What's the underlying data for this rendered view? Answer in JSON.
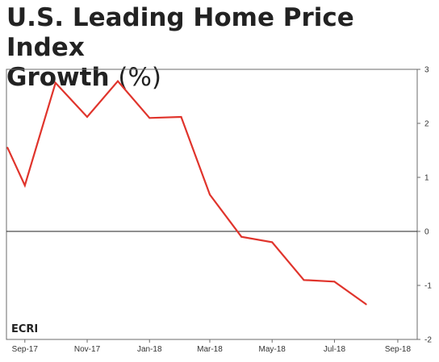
{
  "chart_data": {
    "type": "line",
    "title": "U.S. Leading Home Price Index",
    "title_line2": "Growth",
    "title_unit": "(%)",
    "x_start": "2017-08-14",
    "x_end": "2018-09-20",
    "x_tick_labels": [
      {
        "date": "2017-09-01",
        "label": "Sep-17"
      },
      {
        "date": "2017-11-01",
        "label": "Nov-17"
      },
      {
        "date": "2018-01-01",
        "label": "Jan-18"
      },
      {
        "date": "2018-03-01",
        "label": "Mar-18"
      },
      {
        "date": "2018-05-01",
        "label": "May-18"
      },
      {
        "date": "2018-07-01",
        "label": "Jul-18"
      },
      {
        "date": "2018-09-01",
        "label": "Sep-18"
      }
    ],
    "ylim": [
      -2,
      3
    ],
    "y_ticks": [
      -2,
      -1,
      0,
      1,
      2,
      3
    ],
    "y_axis_side": "right",
    "series": [
      {
        "color": "#e0342c",
        "points": [
          {
            "x": "2017-08-15",
            "y": 1.55
          },
          {
            "x": "2017-09-01",
            "y": 0.85
          },
          {
            "x": "2017-10-01",
            "y": 2.75
          },
          {
            "x": "2017-11-01",
            "y": 2.12
          },
          {
            "x": "2017-12-01",
            "y": 2.78
          },
          {
            "x": "2018-01-01",
            "y": 2.1
          },
          {
            "x": "2018-02-01",
            "y": 2.12
          },
          {
            "x": "2018-03-01",
            "y": 0.68
          },
          {
            "x": "2018-04-01",
            "y": -0.1
          },
          {
            "x": "2018-05-01",
            "y": -0.2
          },
          {
            "x": "2018-06-01",
            "y": -0.9
          },
          {
            "x": "2018-07-01",
            "y": -0.93
          },
          {
            "x": "2018-08-01",
            "y": -1.35
          }
        ]
      }
    ],
    "grid": false,
    "zero_line": true,
    "source_logo": "ECRI"
  }
}
